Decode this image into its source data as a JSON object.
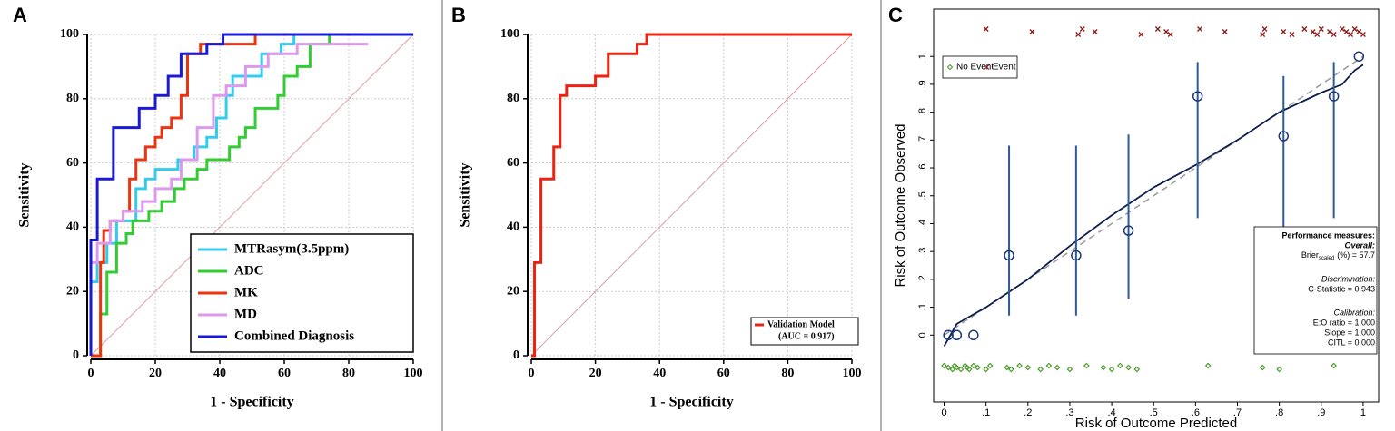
{
  "chart_data": [
    {
      "type": "line",
      "label": "A",
      "xlabel": "1 - Specificity",
      "ylabel": "Sensitivity",
      "xlim": [
        0,
        100
      ],
      "ylim": [
        0,
        100
      ],
      "xticks": [
        0,
        20,
        40,
        60,
        80,
        100
      ],
      "yticks": [
        0,
        20,
        40,
        60,
        80,
        100
      ],
      "grid": true,
      "legend": "lower right",
      "series": [
        {
          "name": "MTRasym(3.5ppm)",
          "color": "#33ccee",
          "x": [
            0,
            0,
            2,
            2,
            5,
            5,
            8,
            8,
            14,
            14,
            17,
            17,
            20,
            20,
            27,
            27,
            32,
            32,
            36,
            36,
            39,
            39,
            42,
            42,
            44,
            44,
            53,
            53,
            59,
            59,
            63,
            63,
            100
          ],
          "values": [
            0,
            23,
            23,
            29,
            29,
            35,
            35,
            42,
            42,
            52,
            52,
            55,
            55,
            58,
            58,
            61,
            61,
            65,
            65,
            68,
            68,
            74,
            74,
            81,
            81,
            87,
            87,
            94,
            94,
            97,
            97,
            100,
            100
          ]
        },
        {
          "name": "ADC",
          "color": "#33cc33",
          "x": [
            0,
            3,
            3,
            5,
            5,
            8,
            8,
            11,
            11,
            13,
            13,
            18,
            18,
            22,
            22,
            26,
            26,
            29,
            29,
            33,
            33,
            36,
            36,
            43,
            43,
            46,
            46,
            48,
            48,
            51,
            51,
            58,
            58,
            60,
            60,
            64,
            64,
            68,
            68,
            74,
            74,
            100
          ],
          "values": [
            0,
            0,
            13,
            13,
            26,
            26,
            35,
            35,
            38,
            38,
            42,
            42,
            45,
            45,
            48,
            48,
            52,
            52,
            55,
            55,
            58,
            58,
            61,
            61,
            65,
            65,
            68,
            68,
            71,
            71,
            77,
            77,
            81,
            81,
            87,
            87,
            90,
            90,
            97,
            97,
            100,
            100
          ]
        },
        {
          "name": "MK",
          "color": "#ee3311",
          "x": [
            0,
            3,
            3,
            4,
            4,
            6,
            6,
            10,
            10,
            12,
            12,
            14,
            14,
            17,
            17,
            20,
            20,
            22,
            22,
            25,
            25,
            28,
            28,
            30,
            30,
            34,
            34,
            51,
            51,
            100
          ],
          "values": [
            0,
            0,
            29,
            29,
            39,
            39,
            42,
            42,
            45,
            45,
            55,
            55,
            61,
            61,
            65,
            65,
            68,
            68,
            71,
            71,
            74,
            74,
            81,
            81,
            94,
            94,
            97,
            97,
            100,
            100
          ]
        },
        {
          "name": "MD",
          "color": "#dd99ee",
          "x": [
            0,
            0,
            2,
            2,
            6,
            6,
            10,
            10,
            16,
            16,
            20,
            20,
            25,
            25,
            28,
            28,
            33,
            33,
            38,
            38,
            42,
            42,
            48,
            48,
            55,
            55,
            64,
            64,
            86
          ],
          "values": [
            0,
            29,
            29,
            35,
            35,
            42,
            42,
            45,
            45,
            48,
            48,
            52,
            52,
            55,
            55,
            61,
            61,
            71,
            71,
            81,
            81,
            84,
            84,
            90,
            90,
            94,
            94,
            97,
            97
          ]
        },
        {
          "name": "Combined Diagnosis",
          "color": "#1a1ad6",
          "x": [
            0,
            0,
            2,
            2,
            7,
            7,
            15,
            15,
            20,
            20,
            24,
            24,
            28,
            28,
            36,
            36,
            41,
            41,
            100
          ],
          "values": [
            0,
            36,
            36,
            55,
            55,
            71,
            71,
            77,
            77,
            81,
            81,
            87,
            87,
            94,
            94,
            97,
            97,
            100,
            100
          ]
        }
      ]
    },
    {
      "type": "line",
      "label": "B",
      "xlabel": "1 - Specificity",
      "ylabel": "Sensitivity",
      "xlim": [
        0,
        100
      ],
      "ylim": [
        0,
        100
      ],
      "xticks": [
        0,
        20,
        40,
        60,
        80,
        100
      ],
      "yticks": [
        0,
        20,
        40,
        60,
        80,
        100
      ],
      "grid": true,
      "legend": "lower right",
      "annotation": "(AUC = 0.917)",
      "series": [
        {
          "name": "Validation Model",
          "color": "#ee2211",
          "x": [
            0,
            1,
            1,
            3,
            3,
            7,
            7,
            9,
            9,
            11,
            11,
            20,
            20,
            24,
            24,
            33,
            33,
            36,
            36,
            44,
            44,
            100
          ],
          "values": [
            0,
            0,
            29,
            29,
            55,
            55,
            65,
            65,
            81,
            81,
            84,
            84,
            87,
            87,
            94,
            94,
            97,
            97,
            100,
            100,
            100,
            100
          ]
        }
      ]
    },
    {
      "type": "scatter",
      "label": "C",
      "xlabel": "Risk of Outcome Predicted",
      "ylabel": "Risk of Outcome Observed",
      "xlim": [
        -0.025,
        1.037
      ],
      "ylim": [
        -0.24,
        1.17
      ],
      "xticks": [
        0,
        {
          "value": 0.1,
          "label": ".1"
        },
        {
          "value": 0.2,
          "label": ".2"
        },
        {
          "value": 0.3,
          "label": ".3"
        },
        {
          "value": 0.4,
          "label": ".4"
        },
        {
          "value": 0.5,
          "label": ".5"
        },
        {
          "value": 0.6,
          "label": ".6"
        },
        {
          "value": 0.7,
          "label": ".7"
        },
        {
          "value": 0.8,
          "label": ".8"
        },
        {
          "value": 0.9,
          "label": ".9"
        },
        1
      ],
      "yticks": [
        0,
        {
          "value": 0.1,
          "label": ".1"
        },
        {
          "value": 0.2,
          "label": ".2"
        },
        {
          "value": 0.3,
          "label": ".3"
        },
        {
          "value": 0.4,
          "label": ".4"
        },
        {
          "value": 0.5,
          "label": ".5"
        },
        {
          "value": 0.6,
          "label": ".6"
        },
        {
          "value": 0.7,
          "label": ".7"
        },
        {
          "value": 0.8,
          "label": ".8"
        },
        {
          "value": 0.9,
          "label": ".9"
        },
        1
      ],
      "legend": "upper left",
      "groups": {
        "color": "#1f3a7a",
        "error_color": "#2e5a9a",
        "x": [
          0.01,
          0.03,
          0.07,
          0.155,
          0.315,
          0.44,
          0.605,
          0.81,
          0.93,
          0.99
        ],
        "values": [
          0,
          0,
          0,
          0.286,
          0.286,
          0.375,
          0.857,
          0.714,
          0.857,
          1.0
        ],
        "ci_low": [
          null,
          null,
          null,
          0.07,
          0.07,
          0.13,
          0.42,
          0.29,
          0.42,
          null
        ],
        "ci_high": [
          null,
          null,
          null,
          0.68,
          0.68,
          0.72,
          0.98,
          0.93,
          0.98,
          null
        ]
      },
      "smooth": {
        "color": "#0d1f4a",
        "x": [
          0,
          0.03,
          0.1,
          0.2,
          0.3,
          0.4,
          0.5,
          0.6,
          0.7,
          0.8,
          0.9,
          0.95,
          0.98,
          1.0
        ],
        "values": [
          -0.04,
          0.04,
          0.1,
          0.2,
          0.32,
          0.43,
          0.53,
          0.61,
          0.7,
          0.8,
          0.87,
          0.9,
          0.95,
          0.97
        ]
      },
      "series": [
        {
          "name": "No Event",
          "color": "#4a9a2a",
          "x": [
            0.0,
            0.01,
            0.02,
            0.025,
            0.03,
            0.04,
            0.05,
            0.055,
            0.06,
            0.07,
            0.08,
            0.1,
            0.11,
            0.15,
            0.16,
            0.18,
            0.2,
            0.23,
            0.25,
            0.27,
            0.3,
            0.34,
            0.38,
            0.4,
            0.42,
            0.44,
            0.46,
            0.63,
            0.76,
            0.8,
            0.93
          ]
        },
        {
          "name": "Event",
          "color": "#8b1a1a",
          "x": [
            0.1,
            0.21,
            0.32,
            0.33,
            0.36,
            0.47,
            0.51,
            0.53,
            0.54,
            0.61,
            0.67,
            0.76,
            0.765,
            0.81,
            0.83,
            0.86,
            0.88,
            0.89,
            0.9,
            0.92,
            0.93,
            0.95,
            0.96,
            0.97,
            0.98,
            0.99,
            1.0
          ]
        }
      ],
      "performance": {
        "title": "Performance measures:",
        "overall": "Overall:",
        "brier": "Brier",
        "brier_sub": "scaled",
        "brier_value": "(%) = 57.7",
        "discrimination": "Discrimination:",
        "c_statistic": "C-Statistic = 0.943",
        "calibration": "Calibration:",
        "eo_ratio": "E:O ratio = 1.000",
        "slope": "Slope = 1.000",
        "citl": "CITL = 0.000"
      }
    }
  ]
}
